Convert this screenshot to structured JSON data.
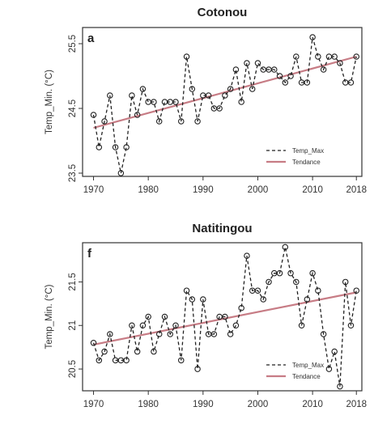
{
  "chart_data": [
    {
      "type": "line",
      "title": "Cotonou",
      "panel_label": "a",
      "ylabel": "Temp_Min. (°C)",
      "xlabel": "",
      "xlim": [
        1968,
        2019
      ],
      "ylim": [
        23.45,
        25.75
      ],
      "xticks": [
        1970,
        1980,
        1990,
        2000,
        2010,
        2018
      ],
      "yticks": [
        23.5,
        24.5,
        25.5
      ],
      "grid": false,
      "legend_position": "bottom-right",
      "series": [
        {
          "name": "Temp_Max",
          "style": "dashed-with-circles",
          "color": "#222222",
          "x": [
            1970,
            1971,
            1972,
            1973,
            1974,
            1975,
            1976,
            1977,
            1978,
            1979,
            1980,
            1981,
            1982,
            1983,
            1984,
            1985,
            1986,
            1987,
            1988,
            1989,
            1990,
            1991,
            1992,
            1993,
            1994,
            1995,
            1996,
            1997,
            1998,
            1999,
            2000,
            2001,
            2002,
            2003,
            2004,
            2005,
            2006,
            2007,
            2008,
            2009,
            2010,
            2011,
            2012,
            2013,
            2014,
            2015,
            2016,
            2017,
            2018
          ],
          "y": [
            24.4,
            23.9,
            24.3,
            24.7,
            23.9,
            23.5,
            23.9,
            24.7,
            24.4,
            24.8,
            24.6,
            24.6,
            24.3,
            24.6,
            24.6,
            24.6,
            24.3,
            25.3,
            24.8,
            24.3,
            24.7,
            24.7,
            24.5,
            24.5,
            24.7,
            24.8,
            25.1,
            24.6,
            25.2,
            24.8,
            25.2,
            25.1,
            25.1,
            25.1,
            25.0,
            24.9,
            25.0,
            25.3,
            24.9,
            24.9,
            25.6,
            25.3,
            25.1,
            25.3,
            25.3,
            25.2,
            24.9,
            24.9,
            25.3
          ]
        },
        {
          "name": "Tendance",
          "style": "solid",
          "color": "#c77c85",
          "x": [
            1970,
            2018
          ],
          "y": [
            24.2,
            25.3
          ]
        }
      ],
      "legend": [
        "Temp_Max",
        "Tendance"
      ]
    },
    {
      "type": "line",
      "title": "Natitingou",
      "panel_label": "f",
      "ylabel": "Temp_Min. (°C)",
      "xlabel": "",
      "xlim": [
        1968,
        2019
      ],
      "ylim": [
        20.25,
        21.95
      ],
      "xticks": [
        1970,
        1980,
        1990,
        2000,
        2010,
        2018
      ],
      "yticks": [
        20.5,
        21.0,
        21.5
      ],
      "grid": false,
      "legend_position": "bottom-right",
      "series": [
        {
          "name": "Temp_Max",
          "style": "dashed-with-circles",
          "color": "#222222",
          "x": [
            1970,
            1971,
            1972,
            1973,
            1974,
            1975,
            1976,
            1977,
            1978,
            1979,
            1980,
            1981,
            1982,
            1983,
            1984,
            1985,
            1986,
            1987,
            1988,
            1989,
            1990,
            1991,
            1992,
            1993,
            1994,
            1995,
            1996,
            1997,
            1998,
            1999,
            2000,
            2001,
            2002,
            2003,
            2004,
            2005,
            2006,
            2007,
            2008,
            2009,
            2010,
            2011,
            2012,
            2013,
            2014,
            2015,
            2016,
            2017,
            2018
          ],
          "y": [
            20.8,
            20.6,
            20.7,
            20.9,
            20.6,
            20.6,
            20.6,
            21.0,
            20.7,
            21.0,
            21.1,
            20.7,
            20.9,
            21.1,
            20.9,
            21.0,
            20.6,
            21.4,
            21.3,
            20.5,
            21.3,
            20.9,
            20.9,
            21.1,
            21.1,
            20.9,
            21.0,
            21.2,
            21.8,
            21.4,
            21.4,
            21.3,
            21.5,
            21.6,
            21.6,
            21.9,
            21.6,
            21.5,
            21.0,
            21.3,
            21.6,
            21.4,
            20.9,
            20.5,
            20.7,
            20.3,
            21.5,
            21.0,
            21.4
          ]
        },
        {
          "name": "Tendance",
          "style": "solid",
          "color": "#c77c85",
          "x": [
            1970,
            2018
          ],
          "y": [
            20.78,
            21.38
          ]
        }
      ],
      "legend": [
        "Temp_Max",
        "Tendance"
      ]
    }
  ]
}
